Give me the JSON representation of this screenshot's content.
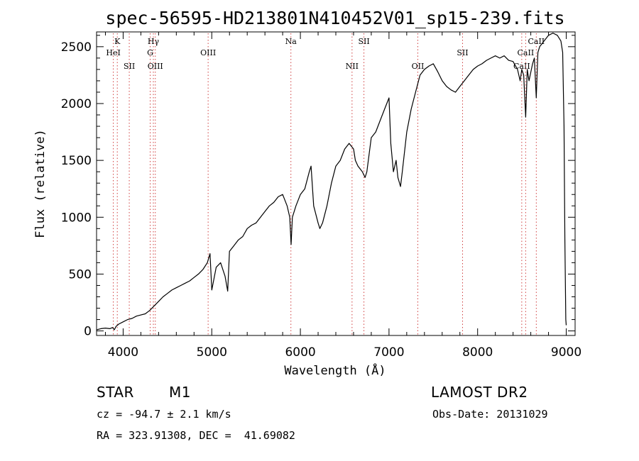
{
  "chart_data": {
    "type": "line",
    "title": "spec-56595-HD213801N410452V01_sp15-239.fits",
    "xlabel": "Wavelength (Å)",
    "ylabel": "Flux (relative)",
    "xlim": [
      3700,
      9100
    ],
    "ylim": [
      -40,
      2630
    ],
    "x_ticks": [
      4000,
      5000,
      6000,
      7000,
      8000,
      9000
    ],
    "y_ticks": [
      0,
      500,
      1000,
      1500,
      2000,
      2500
    ],
    "grid": false,
    "series": [
      {
        "x": [
          3700,
          3750,
          3800,
          3850,
          3880,
          3900,
          3920,
          3950,
          4000,
          4050,
          4100,
          4150,
          4200,
          4250,
          4300,
          4350,
          4400,
          4450,
          4500,
          4550,
          4600,
          4650,
          4700,
          4750,
          4800,
          4850,
          4900,
          4950,
          4980,
          5000,
          5050,
          5100,
          5150,
          5180,
          5200,
          5250,
          5300,
          5350,
          5400,
          5450,
          5500,
          5550,
          5600,
          5650,
          5700,
          5750,
          5800,
          5850,
          5880,
          5895,
          5910,
          5950,
          6000,
          6050,
          6100,
          6120,
          6150,
          6200,
          6220,
          6250,
          6300,
          6350,
          6400,
          6450,
          6500,
          6550,
          6600,
          6620,
          6650,
          6700,
          6730,
          6750,
          6800,
          6850,
          6900,
          6950,
          7000,
          7020,
          7050,
          7080,
          7100,
          7130,
          7150,
          7200,
          7250,
          7300,
          7350,
          7400,
          7450,
          7500,
          7550,
          7600,
          7650,
          7700,
          7750,
          7800,
          7850,
          7900,
          7950,
          8000,
          8050,
          8100,
          8150,
          8200,
          8250,
          8300,
          8350,
          8400,
          8450,
          8480,
          8498,
          8520,
          8542,
          8560,
          8580,
          8620,
          8640,
          8662,
          8680,
          8700,
          8750,
          8800,
          8850,
          8900,
          8940,
          8960,
          8975,
          8985,
          8995,
          9000
        ],
        "y": [
          10,
          20,
          25,
          20,
          30,
          10,
          40,
          60,
          80,
          100,
          110,
          130,
          140,
          150,
          180,
          220,
          260,
          300,
          330,
          360,
          380,
          400,
          420,
          440,
          470,
          500,
          540,
          600,
          680,
          360,
          560,
          600,
          480,
          350,
          700,
          750,
          800,
          830,
          900,
          930,
          950,
          1000,
          1050,
          1100,
          1130,
          1180,
          1200,
          1100,
          1000,
          760,
          1000,
          1100,
          1200,
          1250,
          1400,
          1450,
          1100,
          950,
          900,
          950,
          1100,
          1300,
          1450,
          1500,
          1600,
          1650,
          1600,
          1500,
          1450,
          1400,
          1350,
          1400,
          1700,
          1750,
          1850,
          1950,
          2050,
          1650,
          1400,
          1500,
          1350,
          1270,
          1400,
          1750,
          1950,
          2100,
          2250,
          2300,
          2330,
          2350,
          2280,
          2200,
          2150,
          2120,
          2100,
          2150,
          2200,
          2250,
          2300,
          2330,
          2350,
          2380,
          2400,
          2420,
          2400,
          2420,
          2380,
          2370,
          2300,
          2200,
          2300,
          2250,
          1880,
          2300,
          2200,
          2350,
          2400,
          2050,
          2450,
          2500,
          2550,
          2600,
          2620,
          2600,
          2550,
          2450,
          1800,
          800,
          100,
          50
        ]
      }
    ],
    "line_markers": [
      {
        "label": "K",
        "wavelength": 3934,
        "row": 0
      },
      {
        "label": "HeI",
        "wavelength": 3889,
        "row": 1
      },
      {
        "label": "SII",
        "wavelength": 4069,
        "row": 2
      },
      {
        "label": "Hγ",
        "wavelength": 4341,
        "row": 0
      },
      {
        "label": "G",
        "wavelength": 4305,
        "row": 1
      },
      {
        "label": "OIII",
        "wavelength": 4363,
        "row": 2
      },
      {
        "label": "OIII",
        "wavelength": 4959,
        "row": 1
      },
      {
        "label": "Na",
        "wavelength": 5893,
        "row": 0
      },
      {
        "label": "NII",
        "wavelength": 6583,
        "row": 2
      },
      {
        "label": "SII",
        "wavelength": 6717,
        "row": 0
      },
      {
        "label": "OII",
        "wavelength": 7325,
        "row": 2
      },
      {
        "label": "SII",
        "wavelength": 7830,
        "row": 1
      },
      {
        "label": "CaII",
        "wavelength": 8498,
        "row": 2
      },
      {
        "label": "CaII",
        "wavelength": 8542,
        "row": 1
      },
      {
        "label": "CaII",
        "wavelength": 8662,
        "row": 0
      }
    ]
  },
  "info": {
    "object_class": "STAR",
    "subclass": "M1",
    "survey": "LAMOST DR2",
    "velocity": "cz = -94.7 ± 2.1 km/s",
    "obs_date": "Obs-Date: 20131029",
    "coords": "RA = 323.91308, DEC =  41.69082"
  }
}
